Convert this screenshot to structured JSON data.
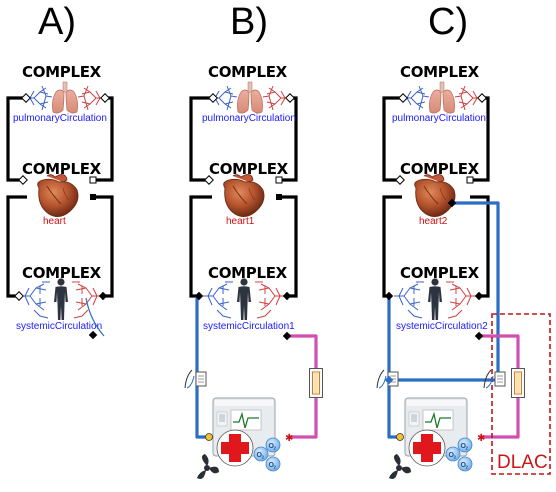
{
  "panels": [
    {
      "label": "A)",
      "top_badge": "COMPLEX",
      "top_model": "pulmonaryCirculation",
      "mid_badge": "COMPLEX",
      "mid_model": "heart",
      "bottom_badge": "COMPLEX",
      "bottom_model": "systemicCirculation"
    },
    {
      "label": "B)",
      "top_badge": "COMPLEX",
      "top_model": "pulmonaryCirculation",
      "mid_badge": "COMPLEX",
      "mid_model": "heart1",
      "bottom_badge": "COMPLEX",
      "bottom_model": "systemicCirculation1"
    },
    {
      "label": "C)",
      "top_badge": "COMPLEX",
      "top_model": "pulmonaryCirculation",
      "mid_badge": "COMPLEX",
      "mid_model": "heart2",
      "bottom_badge": "COMPLEX",
      "bottom_model": "systemicCirculation2",
      "region_label": "DLAC"
    }
  ],
  "colors": {
    "wire": "#000000",
    "venous_line": "#2b6fc4",
    "arterial_line": "#d04fb0",
    "model_label_blue": "#1a1aff",
    "model_label_red": "#d01010",
    "dlac_box": "#c0141c"
  },
  "icons": [
    "lungs-icon",
    "heart-icon",
    "human-body-icon",
    "ecmo-machine-icon",
    "oxygen-bubble-icon",
    "cannula-icon"
  ]
}
